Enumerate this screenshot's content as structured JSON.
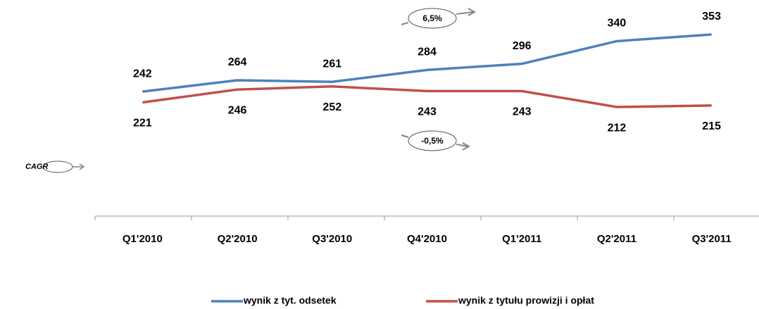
{
  "chart_data": {
    "type": "line",
    "categories": [
      "Q1'2010",
      "Q2'2010",
      "Q3'2010",
      "Q4'2010",
      "Q1'2011",
      "Q2'2011",
      "Q3'2011"
    ],
    "series": [
      {
        "name": "wynik z tyt. odsetek",
        "color": "#4f81bd",
        "values": [
          242,
          264,
          261,
          284,
          296,
          340,
          353
        ]
      },
      {
        "name": "wynik z tytułu prowizji i opłat",
        "color": "#c0504d",
        "values": [
          221,
          246,
          252,
          243,
          243,
          212,
          215
        ]
      }
    ],
    "ylim": [
      0,
      420
    ],
    "annotations": [
      "6,5%",
      "-0,5%"
    ],
    "cagr_label": "CAGR",
    "legend": "bottom"
  }
}
